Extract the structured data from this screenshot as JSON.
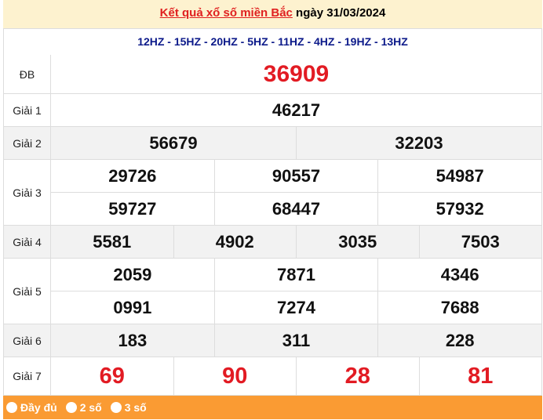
{
  "header": {
    "link": "Kết quả xổ số miền Bắc",
    "date": " ngày 31/03/2024"
  },
  "codes": "12HZ - 15HZ - 20HZ - 5HZ - 11HZ - 4HZ - 19HZ - 13HZ",
  "prizes": [
    {
      "label": "ĐB",
      "rows": [
        [
          "36909"
        ]
      ]
    },
    {
      "label": "Giải 1",
      "rows": [
        [
          "46217"
        ]
      ]
    },
    {
      "label": "Giải 2",
      "rows": [
        [
          "56679",
          "32203"
        ]
      ]
    },
    {
      "label": "Giải 3",
      "rows": [
        [
          "29726",
          "90557",
          "54987"
        ],
        [
          "59727",
          "68447",
          "57932"
        ]
      ]
    },
    {
      "label": "Giải 4",
      "rows": [
        [
          "5581",
          "4902",
          "3035",
          "7503"
        ]
      ]
    },
    {
      "label": "Giải 5",
      "rows": [
        [
          "2059",
          "7871",
          "4346"
        ],
        [
          "0991",
          "7274",
          "7688"
        ]
      ]
    },
    {
      "label": "Giải 6",
      "rows": [
        [
          "183",
          "311",
          "228"
        ]
      ]
    },
    {
      "label": "Giải 7",
      "rows": [
        [
          "69",
          "90",
          "28",
          "81"
        ]
      ]
    }
  ],
  "options": [
    "Đầy đủ",
    "2 số",
    "3 số"
  ],
  "colors": {
    "red": "#e21b23",
    "navy": "#0c1a8a",
    "orange": "#fa9b33",
    "header_bg": "#fdf2cf"
  }
}
